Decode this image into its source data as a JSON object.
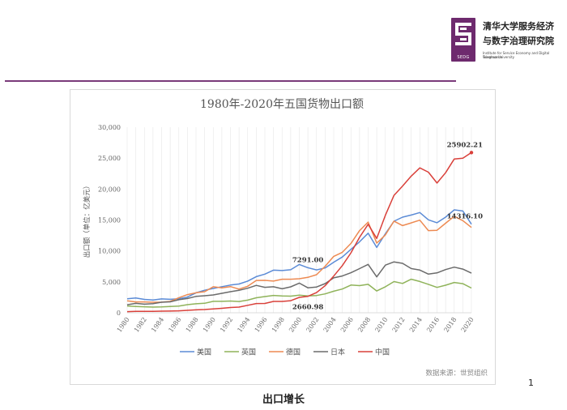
{
  "header": {
    "institute_cn_line1": "清华大学服务经济",
    "institute_cn_line2": "与数字治理研究院",
    "logo_abbr": "SEDG",
    "institute_en_line1": "Institute for Service Economy and Digital Governance",
    "institute_en_line2": "Tsinghua University"
  },
  "page_number": "1",
  "caption": "出口增长",
  "colors": {
    "us": "#5b8bd6",
    "uk": "#8fb35a",
    "germany": "#ed8a52",
    "japan": "#6b6b6b",
    "china": "#d9403a",
    "brand": "#6e2a6e"
  },
  "chart_data": {
    "type": "line",
    "title": "1980年-2020年五国货物出口额",
    "ylabel": "出口额（单位：亿美元）",
    "source": "数据来源：世贸组织",
    "ylim": [
      0,
      30000
    ],
    "yticks": [
      "0",
      "5,000",
      "10,000",
      "15,000",
      "20,000",
      "25,000",
      "30,000"
    ],
    "x": [
      1980,
      1981,
      1982,
      1983,
      1984,
      1985,
      1986,
      1987,
      1988,
      1989,
      1990,
      1991,
      1992,
      1993,
      1994,
      1995,
      1996,
      1997,
      1998,
      1999,
      2000,
      2001,
      2002,
      2003,
      2004,
      2005,
      2006,
      2007,
      2008,
      2009,
      2010,
      2011,
      2012,
      2013,
      2014,
      2015,
      2016,
      2017,
      2018,
      2019,
      2020
    ],
    "xtick_labels": [
      "1980",
      "1982",
      "1984",
      "1986",
      "1988",
      "1990",
      "1992",
      "1994",
      "1996",
      "1998",
      "2000",
      "2002",
      "2004",
      "2006",
      "2008",
      "2010",
      "2012",
      "2014",
      "2016",
      "2018",
      "2020"
    ],
    "grid": "vertical",
    "legend": "bottom",
    "series": [
      {
        "name": "美国",
        "color_key": "us",
        "values": [
          2260,
          2380,
          2160,
          2060,
          2240,
          2180,
          2270,
          2540,
          3220,
          3640,
          3930,
          4220,
          4480,
          4650,
          5120,
          5840,
          6250,
          6890,
          6820,
          6960,
          7810,
          7290,
          6930,
          7240,
          8180,
          9010,
          10260,
          11480,
          12870,
          10560,
          12780,
          14800,
          15460,
          15800,
          16210,
          15030,
          14550,
          15460,
          16640,
          16460,
          14316
        ]
      },
      {
        "name": "英国",
        "color_key": "uk",
        "values": [
          1100,
          1020,
          970,
          920,
          940,
          1010,
          1070,
          1310,
          1450,
          1530,
          1850,
          1850,
          1900,
          1820,
          2050,
          2420,
          2620,
          2810,
          2710,
          2680,
          2850,
          2730,
          2790,
          3050,
          3480,
          3840,
          4480,
          4390,
          4600,
          3530,
          4200,
          5050,
          4740,
          5420,
          5060,
          4600,
          4100,
          4450,
          4900,
          4700,
          3990
        ]
      },
      {
        "name": "德国",
        "color_key": "germany",
        "values": [
          1930,
          1760,
          1760,
          1700,
          1720,
          1840,
          2440,
          2940,
          3230,
          3410,
          4210,
          4020,
          4230,
          3820,
          4290,
          5230,
          5240,
          5120,
          5430,
          5430,
          5500,
          5720,
          6160,
          7520,
          9120,
          9770,
          11220,
          13290,
          14660,
          11270,
          12590,
          14820,
          14100,
          14530,
          14980,
          13290,
          13340,
          14480,
          15600,
          14890,
          13800
        ]
      },
      {
        "name": "日本",
        "color_key": "japan",
        "values": [
          1300,
          1520,
          1390,
          1470,
          1700,
          1770,
          2110,
          2310,
          2650,
          2750,
          2880,
          3150,
          3400,
          3630,
          3970,
          4430,
          4110,
          4210,
          3880,
          4190,
          4790,
          4040,
          4170,
          4720,
          5650,
          5950,
          6470,
          7140,
          7820,
          5810,
          7700,
          8230,
          7990,
          7150,
          6900,
          6250,
          6450,
          6980,
          7380,
          7060,
          6410
        ]
      },
      {
        "name": "中国",
        "color_key": "china",
        "values": [
          181,
          220,
          223,
          222,
          261,
          274,
          309,
          394,
          475,
          525,
          621,
          719,
          849,
          917,
          1210,
          1488,
          1511,
          1828,
          1837,
          1949,
          2492,
          2661,
          3256,
          4382,
          5933,
          7620,
          9689,
          12200,
          14307,
          12016,
          15778,
          18984,
          20487,
          22090,
          23423,
          22735,
          20976,
          22635,
          24867,
          24990,
          25902.21
        ]
      }
    ],
    "annotations": [
      {
        "label": "25902.21",
        "year": 2020,
        "value": 25902.21,
        "anchor": "above"
      },
      {
        "label": "14316.10",
        "year": 2020,
        "value": 14316.1,
        "anchor": "above"
      },
      {
        "label": "7291.00",
        "year": 2001,
        "value": 7291.0,
        "anchor": "above"
      },
      {
        "label": "2660.98",
        "year": 2001,
        "value": 2660.98,
        "anchor": "below"
      }
    ]
  }
}
